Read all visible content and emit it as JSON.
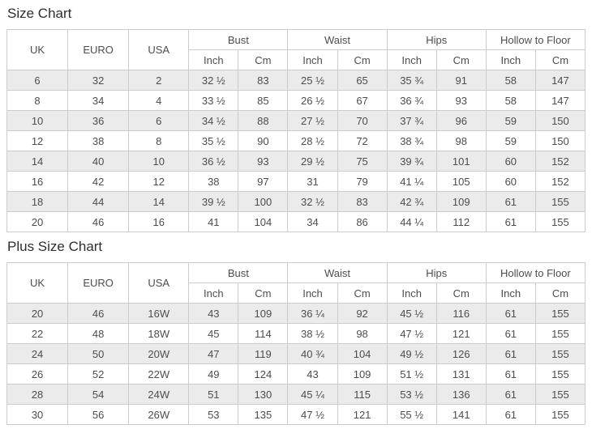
{
  "colors": {
    "background": "#ffffff",
    "stripe": "#ebebeb",
    "border": "#cccccc",
    "text": "#4d4d4d",
    "title_text": "#2e2e2e"
  },
  "size_chart": {
    "title": "Size Chart",
    "base_headers": [
      "UK",
      "EURO",
      "USA"
    ],
    "group_headers": [
      "Bust",
      "Waist",
      "Hips",
      "Hollow to Floor"
    ],
    "unit_headers": [
      "Inch",
      "Cm"
    ],
    "rows": [
      [
        "6",
        "32",
        "2",
        "32 ½",
        "83",
        "25 ½",
        "65",
        "35 ¾",
        "91",
        "58",
        "147"
      ],
      [
        "8",
        "34",
        "4",
        "33 ½",
        "85",
        "26 ½",
        "67",
        "36 ¾",
        "93",
        "58",
        "147"
      ],
      [
        "10",
        "36",
        "6",
        "34 ½",
        "88",
        "27 ½",
        "70",
        "37 ¾",
        "96",
        "59",
        "150"
      ],
      [
        "12",
        "38",
        "8",
        "35 ½",
        "90",
        "28 ½",
        "72",
        "38 ¾",
        "98",
        "59",
        "150"
      ],
      [
        "14",
        "40",
        "10",
        "36 ½",
        "93",
        "29 ½",
        "75",
        "39 ¾",
        "101",
        "60",
        "152"
      ],
      [
        "16",
        "42",
        "12",
        "38",
        "97",
        "31",
        "79",
        "41 ¼",
        "105",
        "60",
        "152"
      ],
      [
        "18",
        "44",
        "14",
        "39 ½",
        "100",
        "32 ½",
        "83",
        "42 ¾",
        "109",
        "61",
        "155"
      ],
      [
        "20",
        "46",
        "16",
        "41",
        "104",
        "34",
        "86",
        "44 ¼",
        "112",
        "61",
        "155"
      ]
    ]
  },
  "plus_size_chart": {
    "title": "Plus Size Chart",
    "base_headers": [
      "UK",
      "EURO",
      "USA"
    ],
    "group_headers": [
      "Bust",
      "Waist",
      "Hips",
      "Hollow to Floor"
    ],
    "unit_headers": [
      "Inch",
      "Cm"
    ],
    "rows": [
      [
        "20",
        "46",
        "16W",
        "43",
        "109",
        "36 ¼",
        "92",
        "45 ½",
        "116",
        "61",
        "155"
      ],
      [
        "22",
        "48",
        "18W",
        "45",
        "114",
        "38 ½",
        "98",
        "47 ½",
        "121",
        "61",
        "155"
      ],
      [
        "24",
        "50",
        "20W",
        "47",
        "119",
        "40 ¾",
        "104",
        "49 ½",
        "126",
        "61",
        "155"
      ],
      [
        "26",
        "52",
        "22W",
        "49",
        "124",
        "43",
        "109",
        "51 ½",
        "131",
        "61",
        "155"
      ],
      [
        "28",
        "54",
        "24W",
        "51",
        "130",
        "45 ¼",
        "115",
        "53 ½",
        "136",
        "61",
        "155"
      ],
      [
        "30",
        "56",
        "26W",
        "53",
        "135",
        "47 ½",
        "121",
        "55 ½",
        "141",
        "61",
        "155"
      ]
    ]
  }
}
